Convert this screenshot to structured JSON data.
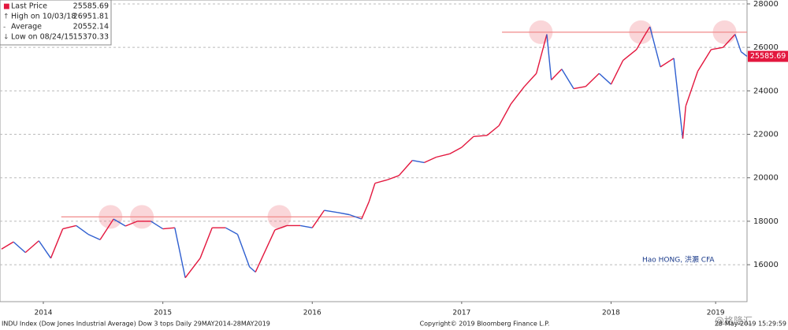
{
  "chart_data": {
    "type": "line",
    "legend": [
      {
        "label": "Last Price",
        "value": 25585.69
      },
      {
        "label": "High on 10/03/18",
        "value": 26951.81
      },
      {
        "label": "Average",
        "value": 20552.14
      },
      {
        "label": "Low on 08/24/15",
        "value": 15370.33
      }
    ],
    "x": [
      2014.42,
      2014.5,
      2014.58,
      2014.67,
      2014.75,
      2014.83,
      2014.92,
      2015.0,
      2015.08,
      2015.17,
      2015.25,
      2015.33,
      2015.42,
      2015.5,
      2015.58,
      2015.65,
      2015.75,
      2015.83,
      2015.92,
      2016.0,
      2016.08,
      2016.12,
      2016.25,
      2016.33,
      2016.42,
      2016.5,
      2016.58,
      2016.67,
      2016.75,
      2016.83,
      2016.88,
      2016.92,
      2017.0,
      2017.08,
      2017.17,
      2017.25,
      2017.33,
      2017.42,
      2017.5,
      2017.58,
      2017.67,
      2017.75,
      2017.83,
      2017.92,
      2018.0,
      2018.07,
      2018.1,
      2018.17,
      2018.25,
      2018.33,
      2018.42,
      2018.5,
      2018.58,
      2018.67,
      2018.72,
      2018.76,
      2018.83,
      2018.92,
      2018.98,
      2019.0,
      2019.08,
      2019.17,
      2019.25,
      2019.33,
      2019.37,
      2019.41
    ],
    "series": [
      {
        "name": "Last Price",
        "up_color": "#e3173e",
        "down_color": "#2f5fd0",
        "values": [
          16720,
          17050,
          16560,
          17100,
          16300,
          17650,
          17800,
          17400,
          17150,
          18100,
          17780,
          18000,
          18000,
          17650,
          17700,
          15400,
          16300,
          17700,
          17700,
          17400,
          15900,
          15660,
          17600,
          17800,
          17800,
          17700,
          18500,
          18400,
          18300,
          18100,
          18900,
          19750,
          19900,
          20100,
          20800,
          20700,
          20950,
          21100,
          21400,
          21900,
          21950,
          22400,
          23400,
          24200,
          24800,
          26600,
          24500,
          25000,
          24100,
          24200,
          24800,
          24300,
          25400,
          25900,
          26500,
          26950,
          25100,
          25500,
          21800,
          23300,
          24900,
          25900,
          26000,
          26600,
          25800,
          25585.69
        ]
      }
    ],
    "xlim": [
      2014.41,
      2019.41
    ],
    "xticks": [
      {
        "value": 2014.7,
        "label": "2014"
      },
      {
        "value": 2015.5,
        "label": "2015"
      },
      {
        "value": 2016.5,
        "label": "2016"
      },
      {
        "value": 2017.5,
        "label": "2017"
      },
      {
        "value": 2018.5,
        "label": "2018"
      },
      {
        "value": 2019.2,
        "label": "2019"
      }
    ],
    "ylim": [
      14300,
      28180
    ],
    "yticks": [
      16000,
      18000,
      20000,
      22000,
      24000,
      26000,
      28000
    ],
    "grid": true,
    "reference_lines": [
      {
        "value": 18200,
        "from": 2014.82,
        "to": 2016.84,
        "tops": [
          2015.15,
          2015.36,
          2016.28
        ]
      },
      {
        "value": 26700,
        "from": 2017.77,
        "to": 2019.41,
        "tops": [
          2018.03,
          2018.7,
          2019.26
        ]
      }
    ],
    "annotations": [
      "Hao HONG, 洪灝 CFA",
      "@格隆汇"
    ],
    "footer": {
      "left": "INDU Index (Dow Jones Industrial Average) Dow 3 tops  Daily 29MAY2014-28MAY2019",
      "center": "Copyright© 2019 Bloomberg Finance L.P.",
      "right": "28-May-2019 15:29:59"
    }
  }
}
